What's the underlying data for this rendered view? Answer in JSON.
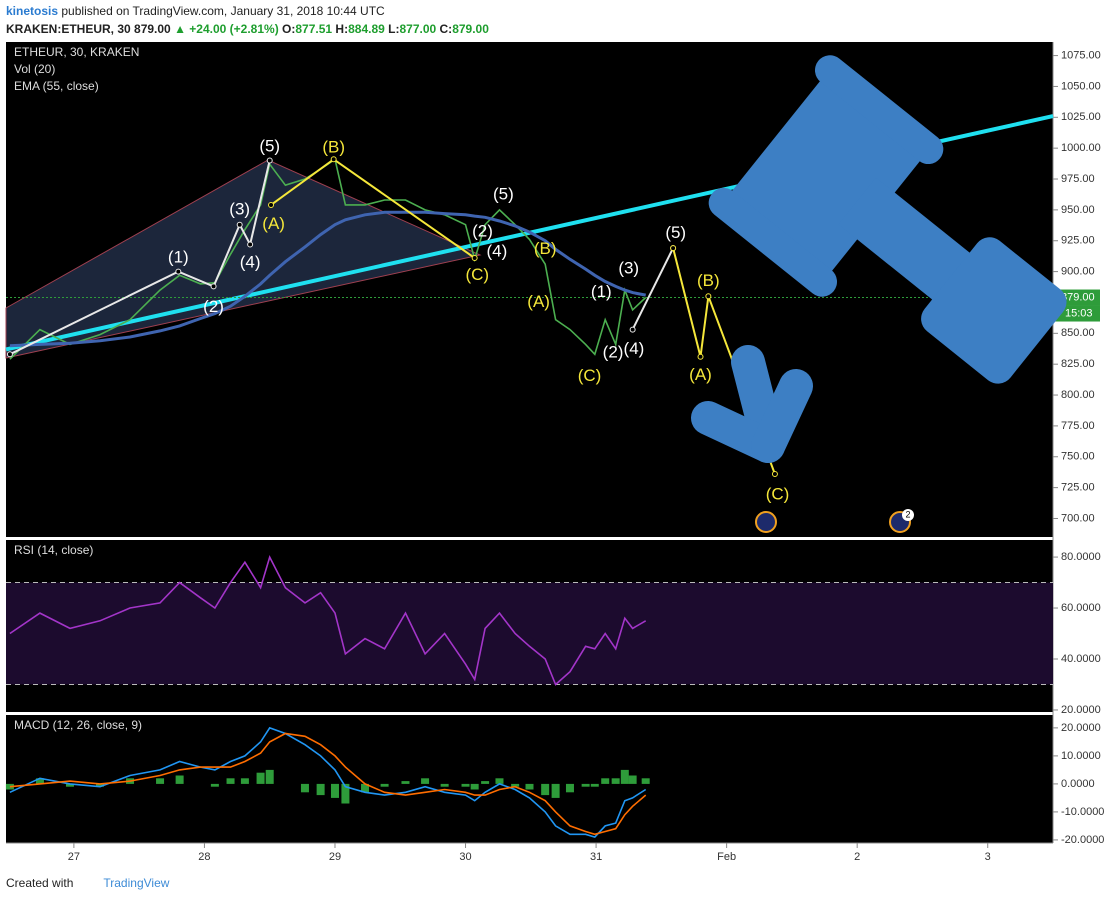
{
  "header": {
    "author": "kinetosis",
    "published": "published on TradingView.com, January 31, 2018 10:44 UTC",
    "symbol": "KRAKEN:ETHEUR, 30",
    "price": "879.00",
    "change": "▲ +24.00 (+2.81%)",
    "ohlc": [
      {
        "label": "O:",
        "value": "877.51"
      },
      {
        "label": "H:",
        "value": "884.89"
      },
      {
        "label": "L:",
        "value": "877.00"
      },
      {
        "label": "C:",
        "value": "879.00"
      }
    ]
  },
  "badge": "2",
  "footer": {
    "created": "Created with",
    "brand": "TradingView"
  },
  "chart_data": [
    {
      "type": "line",
      "title": "ETHEUR, 30, KRAKEN",
      "volume_label": "Vol (20)",
      "xlim": [
        26.48,
        34.5
      ],
      "ylim": [
        685,
        1086
      ],
      "yticks": [
        {
          "value": 700,
          "label": "700.00"
        },
        {
          "value": 725,
          "label": "725.00"
        },
        {
          "value": 750,
          "label": "750.00"
        },
        {
          "value": 775,
          "label": "775.00"
        },
        {
          "value": 800,
          "label": "800.00"
        },
        {
          "value": 825,
          "label": "825.00"
        },
        {
          "value": 850,
          "label": "850.00"
        },
        {
          "value": 875,
          "label": "875.00"
        },
        {
          "value": 900,
          "label": "900.00"
        },
        {
          "value": 925,
          "label": "925.00"
        },
        {
          "value": 950,
          "label": "950.00"
        },
        {
          "value": 975,
          "label": "975.00"
        },
        {
          "value": 1000,
          "label": "1000.00"
        },
        {
          "value": 1025,
          "label": "1025.00"
        },
        {
          "value": 1050,
          "label": "1050.00"
        },
        {
          "value": 1075,
          "label": "1075.00"
        }
      ],
      "x": [
        26.51,
        26.74,
        26.97,
        27.2,
        27.43,
        27.66,
        27.81,
        27.97,
        28.08,
        28.2,
        28.31,
        28.43,
        28.5,
        28.62,
        28.77,
        28.89,
        29.0,
        29.08,
        29.23,
        29.38,
        29.54,
        29.69,
        29.84,
        30.0,
        30.07,
        30.15,
        30.26,
        30.38,
        30.49,
        30.61,
        30.69,
        30.8,
        30.92,
        30.99,
        31.07,
        31.15,
        31.22,
        31.28,
        31.38
      ],
      "series": [
        {
          "color": "#4caf50",
          "values": [
            829,
            853,
            841,
            849,
            861,
            885,
            897,
            890,
            891,
            914,
            934,
            954,
            987,
            970,
            975,
            983,
            991,
            954,
            954,
            958,
            958,
            950,
            946,
            938,
            910,
            938,
            950,
            938,
            926,
            906,
            861,
            853,
            841,
            833,
            861,
            841,
            885,
            869,
            879
          ]
        },
        {
          "name": "EMA (55, close)",
          "color": "#3f64b0",
          "values": [
            840,
            841,
            842,
            844,
            847,
            852,
            856,
            862,
            866,
            872,
            880,
            890,
            897,
            908,
            920,
            930,
            938,
            942,
            946,
            948,
            948,
            948,
            947,
            946,
            945,
            944,
            941,
            937,
            932,
            925,
            918,
            910,
            902,
            897,
            892,
            888,
            885,
            883,
            881
          ]
        }
      ],
      "last_price": {
        "value": 879,
        "label": "879.00"
      },
      "countdown": "15:03",
      "trendlines": [
        {
          "color": "#1fe0f0",
          "x": [
            26.48,
            34.5
          ],
          "y": [
            837,
            1026
          ]
        }
      ],
      "drawings": [
        {
          "color": "#e8e8e8",
          "x": [
            26.51,
            27.8,
            28.07,
            28.27,
            28.35,
            28.5
          ],
          "y": [
            833,
            900,
            888,
            938,
            922,
            990
          ]
        },
        {
          "color": "#f5e73a",
          "x": [
            28.51,
            28.99,
            30.07
          ],
          "y": [
            954,
            991,
            911
          ]
        },
        {
          "color": "#e8e8e8",
          "x": [
            31.28,
            31.59
          ],
          "y": [
            853,
            919
          ]
        },
        {
          "color": "#f5e73a",
          "x": [
            31.59,
            31.8,
            31.86,
            32.37
          ],
          "y": [
            919,
            831,
            880,
            736
          ]
        }
      ],
      "annotations": [
        {
          "label": "(1)",
          "color": "#ffffff",
          "x": 27.8,
          "y": 911
        },
        {
          "label": "(2)",
          "color": "#ffffff",
          "x": 28.07,
          "y": 871
        },
        {
          "label": "(3)",
          "color": "#ffffff",
          "x": 28.27,
          "y": 950
        },
        {
          "label": "(4)",
          "color": "#ffffff",
          "x": 28.35,
          "y": 907
        },
        {
          "label": "(5)",
          "color": "#ffffff",
          "x": 28.5,
          "y": 1001
        },
        {
          "label": "(A)",
          "color": "#f5e73a",
          "x": 28.53,
          "y": 938
        },
        {
          "label": "(B)",
          "color": "#f5e73a",
          "x": 28.99,
          "y": 1000
        },
        {
          "label": "(C)",
          "color": "#f5e73a",
          "x": 30.09,
          "y": 897
        },
        {
          "label": "(2)",
          "color": "#ffffff",
          "x": 30.13,
          "y": 932
        },
        {
          "label": "(4)",
          "color": "#ffffff",
          "x": 30.24,
          "y": 916
        },
        {
          "label": "(5)",
          "color": "#ffffff",
          "x": 30.29,
          "y": 962
        },
        {
          "label": "(B)",
          "color": "#f5e73a",
          "x": 30.61,
          "y": 918
        },
        {
          "label": "(A)",
          "color": "#f5e73a",
          "x": 30.56,
          "y": 875
        },
        {
          "label": "(C)",
          "color": "#f5e73a",
          "x": 30.95,
          "y": 815
        },
        {
          "label": "(1)",
          "color": "#ffffff",
          "x": 31.04,
          "y": 883
        },
        {
          "label": "(2)",
          "color": "#ffffff",
          "x": 31.13,
          "y": 834
        },
        {
          "label": "(3)",
          "color": "#ffffff",
          "x": 31.25,
          "y": 902
        },
        {
          "label": "(4)",
          "color": "#ffffff",
          "x": 31.29,
          "y": 837
        },
        {
          "label": "(5)",
          "color": "#ffffff",
          "x": 31.61,
          "y": 931
        },
        {
          "label": "(B)",
          "color": "#f5e73a",
          "x": 31.86,
          "y": 892
        },
        {
          "label": "(A)",
          "color": "#f5e73a",
          "x": 31.8,
          "y": 816
        },
        {
          "label": "(C)",
          "color": "#f5e73a",
          "x": 32.39,
          "y": 719
        }
      ]
    },
    {
      "type": "line",
      "title": "RSI (14, close)",
      "xlim": [
        26.48,
        34.5
      ],
      "ylim": [
        19.2,
        86.7
      ],
      "yticks": [
        {
          "value": 20,
          "label": "20.0000"
        },
        {
          "value": 40,
          "label": "40.0000"
        },
        {
          "value": 60,
          "label": "60.0000"
        },
        {
          "value": 80,
          "label": "80.0000"
        }
      ],
      "bands": [
        30,
        70
      ],
      "x": [
        26.51,
        26.74,
        26.97,
        27.2,
        27.43,
        27.66,
        27.81,
        27.97,
        28.08,
        28.2,
        28.31,
        28.43,
        28.5,
        28.62,
        28.77,
        28.89,
        29.0,
        29.08,
        29.23,
        29.38,
        29.54,
        29.69,
        29.84,
        30.0,
        30.07,
        30.15,
        30.26,
        30.38,
        30.49,
        30.61,
        30.69,
        30.8,
        30.92,
        30.99,
        31.07,
        31.15,
        31.22,
        31.28,
        31.38
      ],
      "series": [
        {
          "color": "#a335c9",
          "values": [
            50,
            58,
            52,
            55,
            60,
            62,
            70,
            64,
            60,
            70,
            78,
            68,
            80,
            68,
            62,
            66,
            58,
            42,
            48,
            44,
            58,
            42,
            50,
            38,
            32,
            52,
            58,
            50,
            45,
            40,
            30,
            35,
            45,
            44,
            50,
            44,
            56,
            52,
            55
          ]
        }
      ]
    },
    {
      "type": "line",
      "title": "MACD (12, 26, close, 9)",
      "xlim": [
        26.48,
        34.5
      ],
      "ylim": [
        -21.1,
        24.6
      ],
      "yticks": [
        {
          "value": -20,
          "label": "-20.0000"
        },
        {
          "value": -10,
          "label": "-10.0000"
        },
        {
          "value": 0,
          "label": "0.0000"
        },
        {
          "value": 10,
          "label": "10.0000"
        },
        {
          "value": 20,
          "label": "20.0000"
        }
      ],
      "xticks": [
        27,
        28,
        29,
        30,
        31,
        {
          "value": 32,
          "label": "Feb"
        },
        {
          "value": 33,
          "label": "2"
        },
        {
          "value": 34,
          "label": "3"
        }
      ],
      "x": [
        26.51,
        26.74,
        26.97,
        27.2,
        27.43,
        27.66,
        27.81,
        27.97,
        28.08,
        28.2,
        28.31,
        28.43,
        28.5,
        28.62,
        28.77,
        28.89,
        29.0,
        29.08,
        29.23,
        29.38,
        29.54,
        29.69,
        29.84,
        30.0,
        30.07,
        30.15,
        30.26,
        30.38,
        30.49,
        30.61,
        30.69,
        30.8,
        30.92,
        30.99,
        31.07,
        31.15,
        31.22,
        31.28,
        31.38
      ],
      "series": [
        {
          "type": "bar",
          "color": "#2e9c3a",
          "values": [
            -2,
            2,
            -1,
            -1,
            2,
            2,
            3,
            0,
            -1,
            2,
            2,
            4,
            5,
            0,
            -3,
            -4,
            -5,
            -7,
            -3,
            -1,
            1,
            2,
            -1,
            -1,
            -2,
            1,
            2,
            -1,
            -2,
            -4,
            -5,
            -3,
            -1,
            -1,
            2,
            2,
            5,
            3,
            2
          ]
        },
        {
          "color": "#2196f3",
          "values": [
            -3,
            2,
            0,
            -1,
            3,
            5,
            8,
            6,
            5,
            8,
            10,
            15,
            20,
            18,
            14,
            10,
            5,
            -1,
            -3,
            -4,
            -3,
            -1,
            -3,
            -4,
            -6,
            -3,
            0,
            -2,
            -5,
            -10,
            -15,
            -18,
            -18,
            -19,
            -15,
            -14,
            -6,
            -5,
            -2
          ]
        },
        {
          "color": "#ff6d00",
          "values": [
            -1,
            0,
            1,
            0,
            1,
            3,
            5,
            6,
            6,
            6,
            8,
            11,
            15,
            18,
            17,
            14,
            10,
            6,
            0,
            -3,
            -4,
            -3,
            -2,
            -3,
            -4,
            -4,
            -2,
            -1,
            -3,
            -6,
            -10,
            -15,
            -17,
            -18,
            -17,
            -16,
            -11,
            -8,
            -4
          ]
        }
      ]
    }
  ]
}
